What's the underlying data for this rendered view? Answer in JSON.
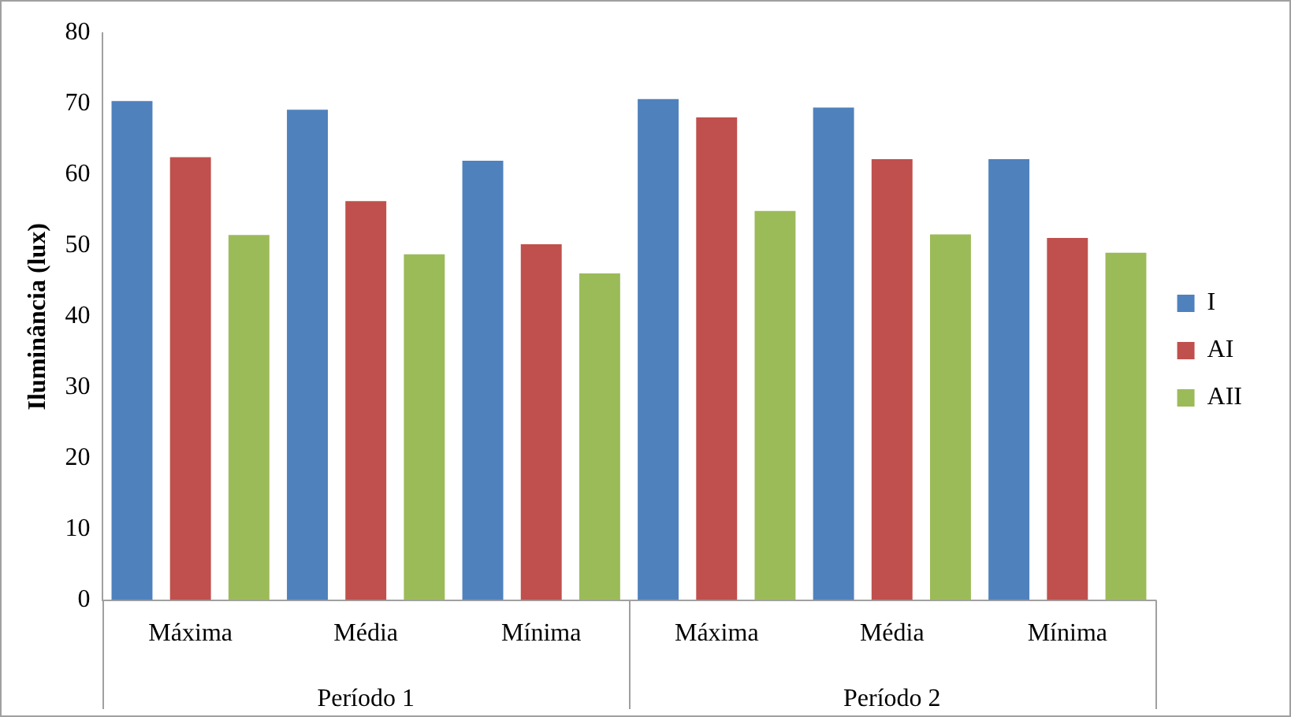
{
  "chart_data": {
    "type": "bar",
    "ylabel": "Iluminância (lux)",
    "categories": [
      "Máxima",
      "Média",
      "Mínima",
      "Máxima",
      "Média",
      "Mínima"
    ],
    "series": [
      {
        "name": "I",
        "color": "#4f81bd",
        "values": [
          70.4,
          69.2,
          62.0,
          70.7,
          69.5,
          62.2
        ]
      },
      {
        "name": "AI",
        "color": "#c0504d",
        "values": [
          62.5,
          56.3,
          50.2,
          68.1,
          62.2,
          51.1
        ]
      },
      {
        "name": "AII",
        "color": "#9bbb59",
        "values": [
          51.5,
          48.8,
          46.1,
          54.9,
          51.6,
          49.0
        ]
      }
    ],
    "annotations": [
      "Período 1",
      "Período 2"
    ],
    "ylim": [
      0,
      80
    ],
    "yticks": [
      0,
      10,
      20,
      30,
      40,
      50,
      60,
      70,
      80
    ],
    "grid": false,
    "legend": "right"
  }
}
